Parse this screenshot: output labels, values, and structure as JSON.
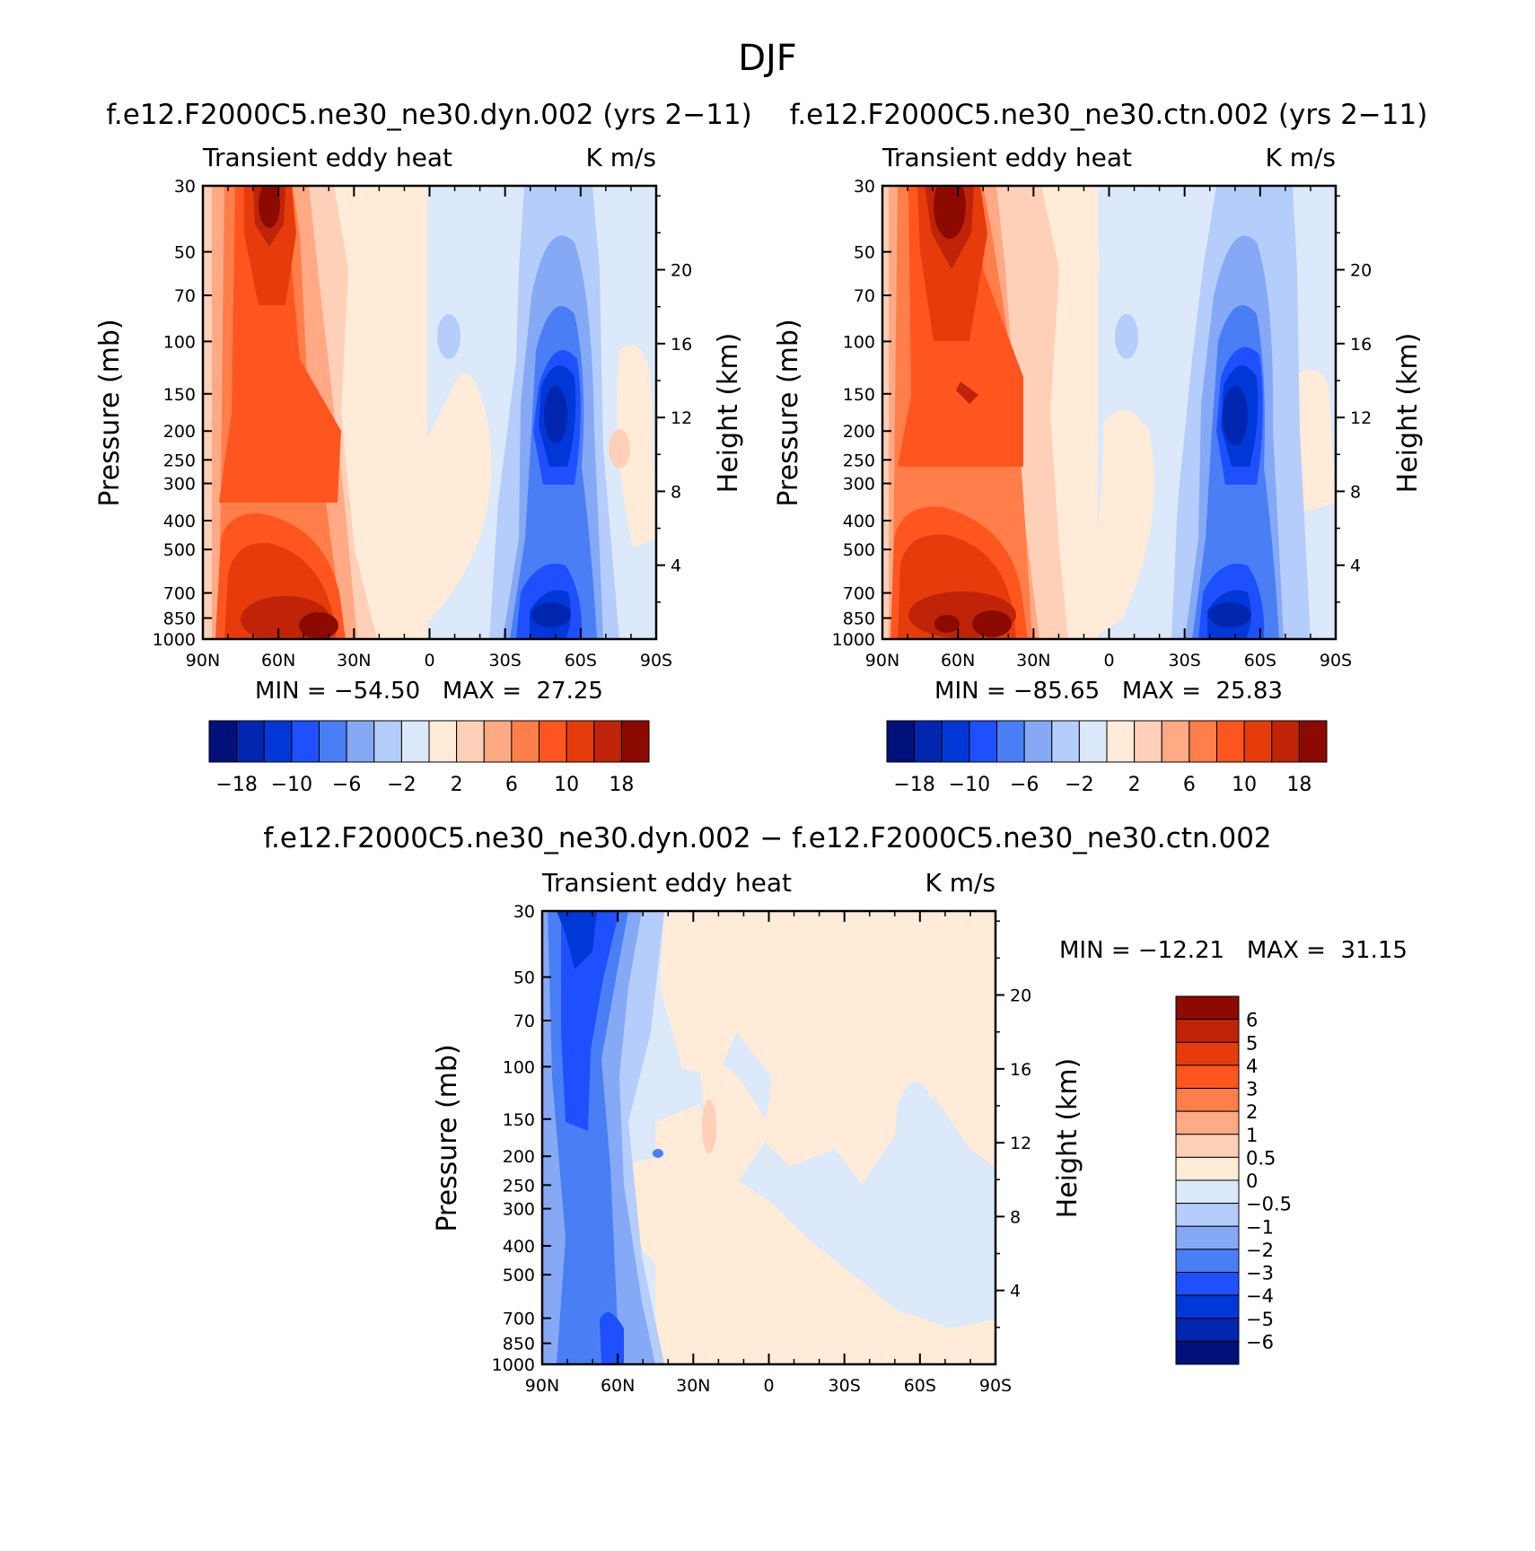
{
  "figure_title": "DJF",
  "chart_data": [
    {
      "type": "heatmap",
      "title": "f.e12.F2000C5.ne30_ne30.dyn.002 (yrs 2−11)",
      "left_label": "Transient eddy heat",
      "right_label": "K m/s",
      "xlabel": "",
      "ylabel": "Pressure (mb)",
      "ylabel_right": "Height (km)",
      "x_ticks": [
        "90N",
        "60N",
        "30N",
        "0",
        "30S",
        "60S",
        "90S"
      ],
      "y_ticks": [
        30,
        50,
        70,
        100,
        150,
        200,
        250,
        300,
        400,
        500,
        700,
        850,
        1000
      ],
      "y_ticks_right": [
        20,
        16,
        12,
        8,
        4
      ],
      "stats_text": "MIN = −54.50   MAX =  27.25",
      "min": -54.5,
      "max": 27.25,
      "colorbar_labels": [
        "−18",
        "−10",
        "−6",
        "−2",
        "2",
        "6",
        "10",
        "18"
      ]
    },
    {
      "type": "heatmap",
      "title": "f.e12.F2000C5.ne30_ne30.ctn.002 (yrs 2−11)",
      "left_label": "Transient eddy heat",
      "right_label": "K m/s",
      "xlabel": "",
      "ylabel": "Pressure (mb)",
      "ylabel_right": "Height (km)",
      "x_ticks": [
        "90N",
        "60N",
        "30N",
        "0",
        "30S",
        "60S",
        "90S"
      ],
      "y_ticks": [
        30,
        50,
        70,
        100,
        150,
        200,
        250,
        300,
        400,
        500,
        700,
        850,
        1000
      ],
      "y_ticks_right": [
        20,
        16,
        12,
        8,
        4
      ],
      "stats_text": "MIN = −85.65   MAX =  25.83",
      "min": -85.65,
      "max": 25.83,
      "colorbar_labels": [
        "−18",
        "−10",
        "−6",
        "−2",
        "2",
        "6",
        "10",
        "18"
      ]
    },
    {
      "type": "heatmap",
      "title": "f.e12.F2000C5.ne30_ne30.dyn.002 − f.e12.F2000C5.ne30_ne30.ctn.002",
      "left_label": "Transient eddy heat",
      "right_label": "K m/s",
      "xlabel": "",
      "ylabel": "Pressure (mb)",
      "ylabel_right": "Height (km)",
      "x_ticks": [
        "90N",
        "60N",
        "30N",
        "0",
        "30S",
        "60S",
        "90S"
      ],
      "y_ticks": [
        30,
        50,
        70,
        100,
        150,
        200,
        250,
        300,
        400,
        500,
        700,
        850,
        1000
      ],
      "y_ticks_right": [
        20,
        16,
        12,
        8,
        4
      ],
      "stats_text": "MIN = −12.21   MAX =  31.15",
      "min": -12.21,
      "max": 31.15,
      "colorbar_labels": [
        "6",
        "5",
        "4",
        "3",
        "2",
        "1",
        "0.5",
        "0",
        "−0.5",
        "−1",
        "−2",
        "−3",
        "−4",
        "−5",
        "−6"
      ]
    }
  ],
  "colors": {
    "palette_blue_to_red": [
      "#00107a",
      "#0026b0",
      "#0038d8",
      "#1e50ff",
      "#4a7ef5",
      "#86a9f5",
      "#b5cdfa",
      "#dbe9fa",
      "#ffebd8",
      "#ffd0b8",
      "#ffa985",
      "#ff7e4a",
      "#ff5620",
      "#e63b0a",
      "#c02408",
      "#8c0a00"
    ]
  }
}
